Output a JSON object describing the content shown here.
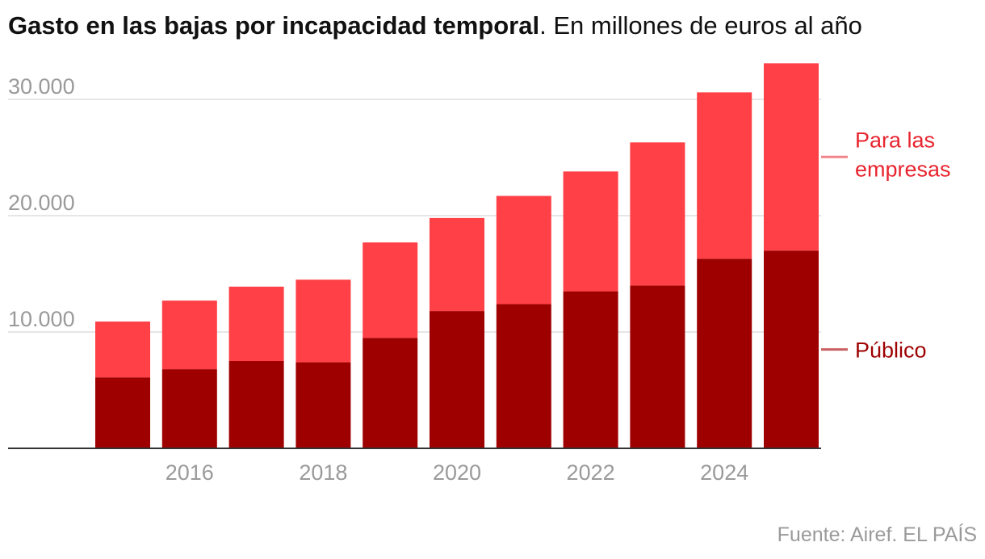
{
  "title": "Gasto en las bajas por incapacidad temporal",
  "subtitle": ". En millones de euros al año",
  "source": "Fuente: Airef. EL PAÍS",
  "colors": {
    "publico": "#9e0000",
    "empresas": "#ff4046",
    "axis": "#333333",
    "grid": "#dddddd",
    "tick": "#9a9a9a",
    "label_empresas": "#e8242f",
    "label_publico": "#9e0000",
    "leader_empresas": "#f2848a",
    "leader_publico": "#c96060"
  },
  "chart_data": {
    "type": "bar",
    "stacked": true,
    "x": [
      2015,
      2016,
      2017,
      2018,
      2019,
      2020,
      2021,
      2022,
      2023,
      2024,
      2025
    ],
    "x_tick_labels": [
      "2016",
      "2018",
      "2020",
      "2022",
      "2024"
    ],
    "series": [
      {
        "name": "Público",
        "values": [
          6100,
          6800,
          7500,
          7400,
          9500,
          11800,
          12400,
          13500,
          14000,
          16300,
          17000
        ]
      },
      {
        "name": "Para las empresas",
        "values": [
          4800,
          5900,
          6400,
          7100,
          8200,
          8000,
          9300,
          10300,
          12300,
          14300,
          16100
        ]
      }
    ],
    "y_ticks": [
      10000,
      20000,
      30000
    ],
    "y_tick_labels": [
      "10.000",
      "20.000",
      "30.000"
    ],
    "ylim": [
      0,
      33500
    ],
    "grid": true,
    "legend": "right-inline",
    "series_labels": [
      {
        "lines": [
          "Para las",
          "empresas"
        ]
      },
      {
        "lines": [
          "Público"
        ]
      }
    ]
  }
}
